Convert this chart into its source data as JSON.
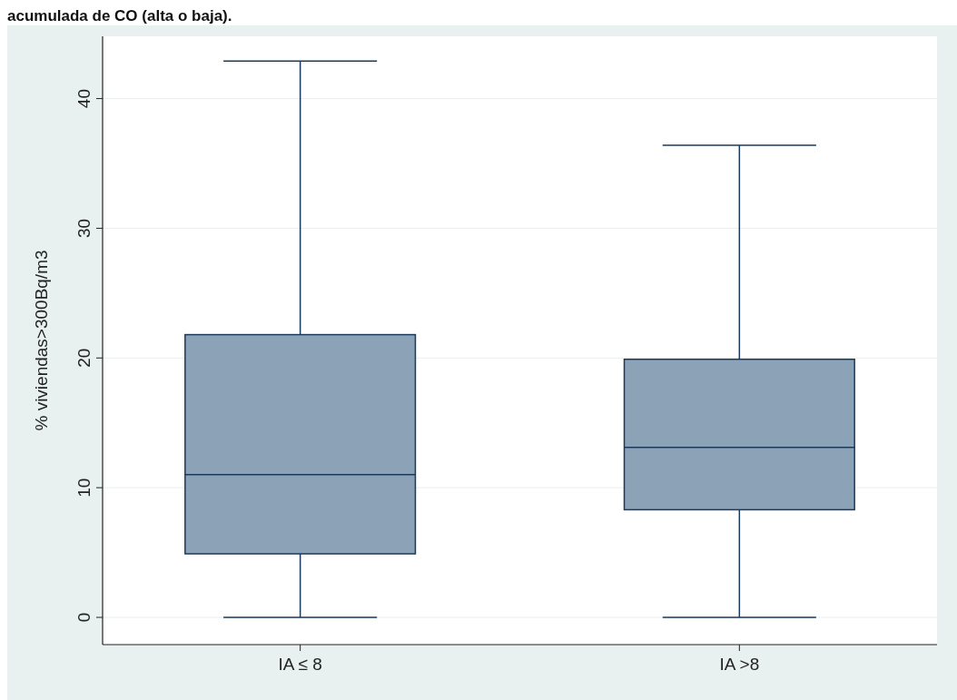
{
  "chart_data": {
    "type": "box",
    "title": "acumulada de CO (alta o baja).",
    "ylabel": "% viviendas>300Bq/m3",
    "categories": [
      "IA ≤ 8",
      "IA >8"
    ],
    "color": "#8ba2b7",
    "boxes": [
      {
        "low": 0,
        "q1": 4.9,
        "median": 11.0,
        "q3": 21.8,
        "high": 42.9
      },
      {
        "low": 0,
        "q1": 8.3,
        "median": 13.1,
        "q3": 19.9,
        "high": 36.4
      }
    ],
    "ylim": [
      -2.1,
      44.8
    ],
    "yticks": [
      0,
      10,
      20,
      30,
      40
    ],
    "grid": "y"
  }
}
